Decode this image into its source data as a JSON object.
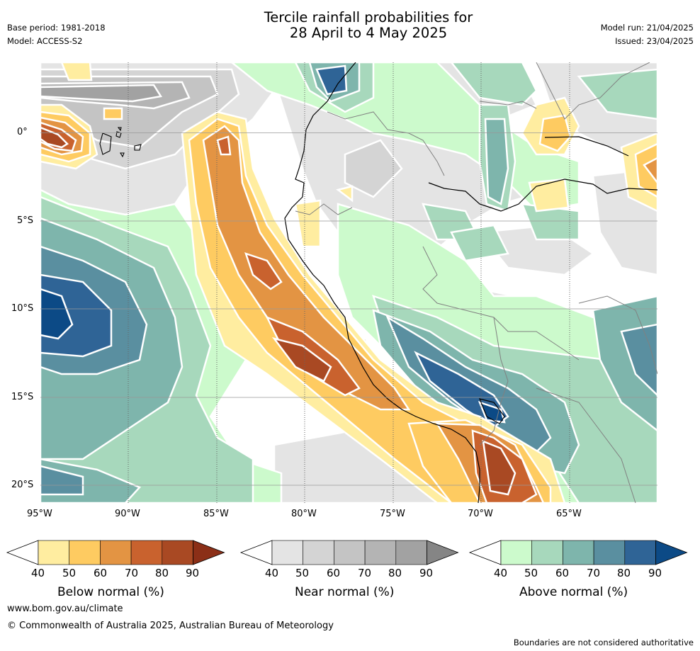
{
  "header": {
    "title_line1": "Tercile rainfall probabilities for",
    "title_line2": "28 April to 4 May 2025",
    "base_period": "Base period: 1981-2018",
    "model": "Model: ACCESS-S2",
    "model_run": "Model run: 21/04/2025",
    "issued": "Issued: 23/04/2025"
  },
  "map": {
    "lon_labels": [
      "95°W",
      "90°W",
      "85°W",
      "80°W",
      "75°W",
      "70°W",
      "65°W"
    ],
    "lat_labels": [
      "0°",
      "5°S",
      "10°S",
      "15°S",
      "20°S"
    ],
    "lon_range": [
      -95,
      -60
    ],
    "lat_range": [
      -21,
      4
    ],
    "gridlines": true
  },
  "legend": {
    "below": {
      "title": "Below normal (%)",
      "ticks": [
        "40",
        "50",
        "60",
        "70",
        "80",
        "90"
      ],
      "colors": [
        "#ffffff",
        "#ffeda0",
        "#fecb61",
        "#e39443",
        "#c9622e",
        "#a94923",
        "#8b2f17"
      ]
    },
    "near": {
      "title": "Near normal (%)",
      "ticks": [
        "40",
        "50",
        "60",
        "70",
        "80",
        "90"
      ],
      "colors": [
        "#ffffff",
        "#e4e4e4",
        "#d4d4d4",
        "#c4c4c4",
        "#b4b4b4",
        "#a2a2a2",
        "#858585"
      ]
    },
    "above": {
      "title": "Above normal (%)",
      "ticks": [
        "40",
        "50",
        "60",
        "70",
        "80",
        "90"
      ],
      "colors": [
        "#ffffff",
        "#ccfacc",
        "#a7d8bc",
        "#7eb5ac",
        "#5a8fa0",
        "#2f6496",
        "#0c4a86"
      ]
    }
  },
  "footer": {
    "url": "www.bom.gov.au/climate",
    "copyright": "© Commonwealth of Australia 2025, Australian Bureau of Meteorology",
    "disclaimer": "Boundaries are not considered authoritative"
  },
  "colors": {
    "gridline": "#666666",
    "coastline": "#000000",
    "border": "#808080",
    "contour_edge": "#ffffff"
  }
}
